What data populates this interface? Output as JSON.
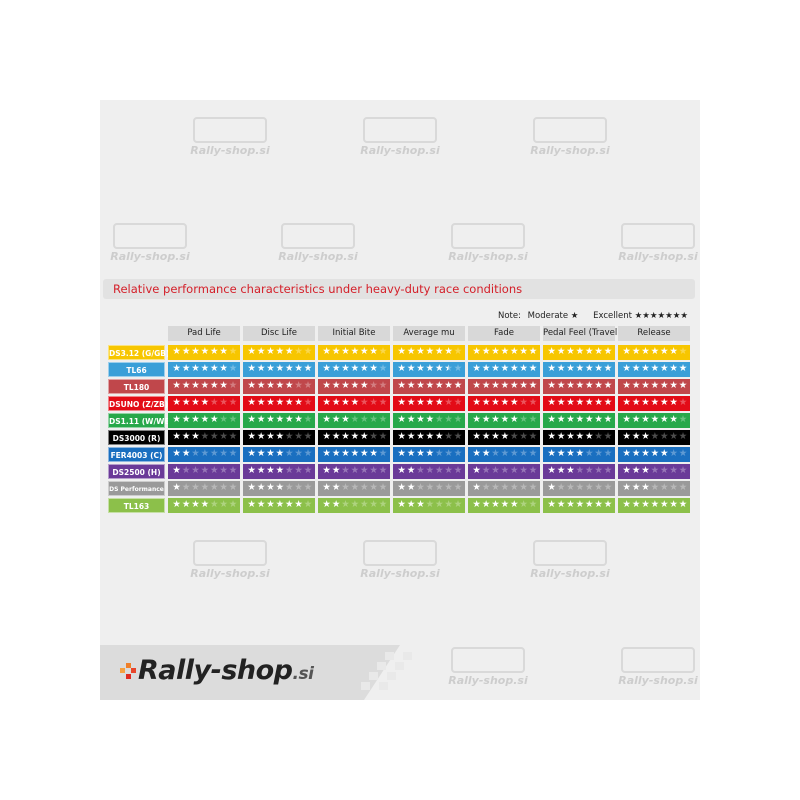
{
  "title": "Relative performance characteristics under heavy-duty race conditions",
  "note": {
    "label": "Note:",
    "moderate": "Moderate ★",
    "excellent": "Excellent ★★★★★★★"
  },
  "max_stars": 7,
  "columns": [
    "Pad Life",
    "Disc Life",
    "Initial Bite",
    "Average mu",
    "Fade",
    "Pedal Feel (Travel)",
    "Release"
  ],
  "rows": [
    {
      "name": "DS3.12 (G/GB)",
      "color": "#f7c600",
      "ratings": [
        6,
        5,
        6,
        6,
        7,
        7,
        6
      ]
    },
    {
      "name": "TL66",
      "color": "#3a9fd8",
      "ratings": [
        6,
        7,
        6,
        5.5,
        7,
        7,
        7
      ]
    },
    {
      "name": "TL180",
      "color": "#c0474b",
      "ratings": [
        6,
        5,
        5,
        7,
        7,
        7,
        7
      ]
    },
    {
      "name": "DSUNO (Z/ZB)",
      "color": "#e30b17",
      "ratings": [
        4,
        6,
        4,
        5,
        5,
        7,
        6
      ]
    },
    {
      "name": "DS1.11 (W/WB)",
      "color": "#27a84a",
      "ratings": [
        5,
        6,
        3,
        4,
        5,
        7,
        6
      ]
    },
    {
      "name": "DS3000 (R)",
      "color": "#000000",
      "ratings": [
        3,
        4,
        5,
        5,
        4,
        5,
        3
      ]
    },
    {
      "name": "FER4003 (C)",
      "color": "#1a6fc0",
      "ratings": [
        2,
        4,
        6,
        4,
        2,
        4,
        5
      ]
    },
    {
      "name": "DS2500 (H)",
      "color": "#6a3a98",
      "ratings": [
        1,
        4,
        2,
        2,
        1,
        3,
        3
      ]
    },
    {
      "name": "DS Performance",
      "color": "#9a9a9a",
      "ratings": [
        1,
        4,
        2,
        2,
        1,
        1,
        3
      ]
    },
    {
      "name": "TL163",
      "color": "#8cc04a",
      "ratings": [
        4,
        6,
        2,
        3,
        5,
        7,
        7
      ]
    }
  ],
  "logo": {
    "text": "Rally-shop",
    "suffix": ".si"
  },
  "watermark": "Rally-shop.si"
}
